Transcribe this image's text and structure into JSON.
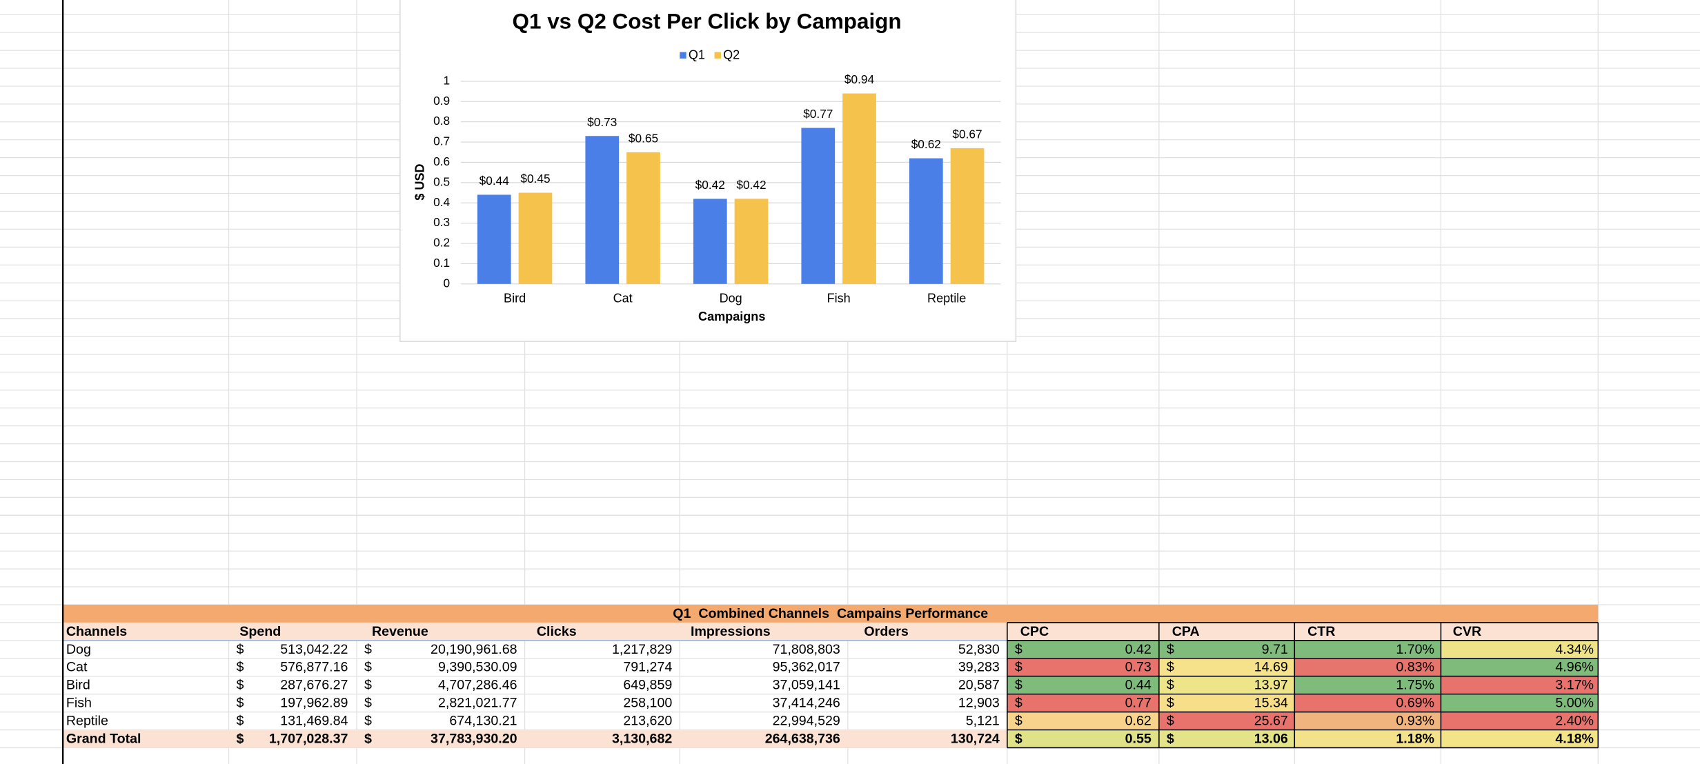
{
  "chart_data": {
    "type": "bar",
    "title": "Q1 vs Q2 Cost Per Click by Campaign",
    "categories": [
      "Bird",
      "Cat",
      "Dog",
      "Fish",
      "Reptile"
    ],
    "series": [
      {
        "name": "Q1",
        "color": "#4a7fe8",
        "values": [
          0.44,
          0.73,
          0.42,
          0.77,
          0.62
        ],
        "value_labels": [
          "$0.44",
          "$0.73",
          "$0.42",
          "$0.77",
          "$0.62"
        ]
      },
      {
        "name": "Q2",
        "color": "#f5c24c",
        "values": [
          0.45,
          0.65,
          0.42,
          0.94,
          0.67
        ],
        "value_labels": [
          "$0.45",
          "$0.65",
          "$0.42",
          "$0.94",
          "$0.67"
        ]
      }
    ],
    "xlabel": "Campaigns",
    "ylabel": "$ USD",
    "ylim": [
      0,
      1
    ],
    "yticks": [
      0,
      0.1,
      0.2,
      0.3,
      0.4,
      0.5,
      0.6,
      0.7,
      0.8,
      0.9,
      1
    ],
    "grid": true,
    "legend": "top"
  },
  "table": {
    "title": "Q1  Combined Channels  Campains Performance",
    "currency": "$",
    "headers": [
      "Channels",
      "Spend",
      "Revenue",
      "Clicks",
      "Impressions",
      "Orders",
      "CPC",
      "CPA",
      "CTR",
      "CVR"
    ],
    "rows": [
      [
        "Dog",
        "513,042.22",
        "20,190,961.68",
        "1,217,829",
        "71,808,803",
        "52,830",
        "0.42",
        "9.71",
        "1.70%",
        "4.34%"
      ],
      [
        "Cat",
        "576,877.16",
        "9,390,530.09",
        "791,274",
        "95,362,017",
        "39,283",
        "0.73",
        "14.69",
        "0.83%",
        "4.96%"
      ],
      [
        "Bird",
        "287,676.27",
        "4,707,286.46",
        "649,859",
        "37,059,141",
        "20,587",
        "0.44",
        "13.97",
        "1.75%",
        "3.17%"
      ],
      [
        "Fish",
        "197,962.89",
        "2,821,021.77",
        "258,100",
        "37,414,246",
        "12,903",
        "0.77",
        "15.34",
        "0.69%",
        "5.00%"
      ],
      [
        "Reptile",
        "131,469.84",
        "674,130.21",
        "213,620",
        "22,994,529",
        "5,121",
        "0.62",
        "25.67",
        "0.93%",
        "2.40%"
      ],
      [
        "Grand Total",
        "1,707,028.37",
        "37,783,930.20",
        "3,130,682",
        "264,638,736",
        "130,724",
        "0.55",
        "13.06",
        "1.18%",
        "4.18%"
      ]
    ],
    "cell_colors": [
      [
        "#7fbb7b",
        "#7fbb7b",
        "#7fbb7b",
        "#eee487"
      ],
      [
        "#e8736c",
        "#f5e28a",
        "#e6756e",
        "#7fbb7b"
      ],
      [
        "#7fbb7b",
        "#eee589",
        "#7fbb7b",
        "#e8736c"
      ],
      [
        "#e8736c",
        "#f7df8a",
        "#e8736c",
        "#7fbb7b"
      ],
      [
        "#f7d38c",
        "#e8736c",
        "#f0b47e",
        "#e8736c"
      ],
      [
        "#dfe287",
        "#e4e387",
        "#f4e28a",
        "#f3e488"
      ]
    ]
  }
}
